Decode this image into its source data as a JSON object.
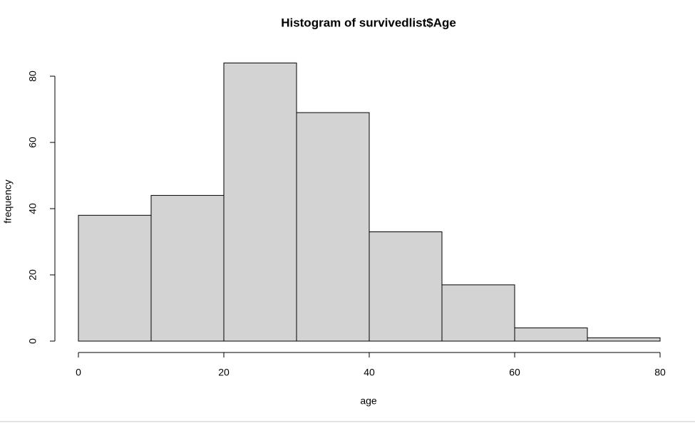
{
  "chart_data": {
    "type": "histogram",
    "title": "Histogram of survivedlist$Age",
    "x_label": "age",
    "y_label": "frequency",
    "bins": [
      0,
      10,
      20,
      30,
      40,
      50,
      60,
      70,
      80
    ],
    "counts": [
      38,
      44,
      84,
      69,
      33,
      17,
      4,
      1
    ],
    "color": "#d3d3d3",
    "xlim": [
      0,
      80
    ],
    "xticks": [
      0,
      20,
      40,
      60,
      80
    ],
    "ylim": [
      0,
      80
    ],
    "yticks": [
      0,
      20,
      40,
      60,
      80
    ]
  }
}
